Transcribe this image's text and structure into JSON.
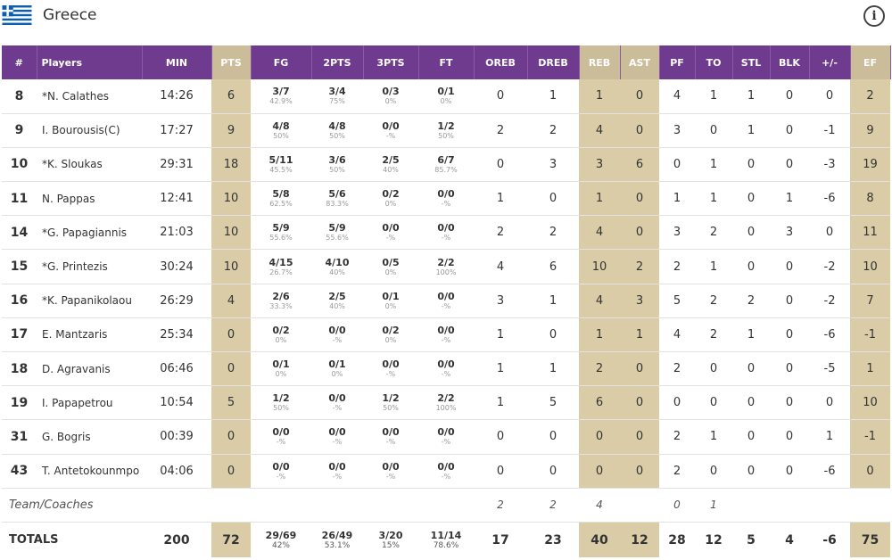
{
  "header": {
    "team": "Greece",
    "info_icon": "info-icon",
    "flag_icon": "greece-flag-icon"
  },
  "columns": [
    "#",
    "Players",
    "MIN",
    "PTS",
    "FG",
    "2PTS",
    "3PTS",
    "FT",
    "OREB",
    "DREB",
    "REB",
    "AST",
    "PF",
    "TO",
    "STL",
    "BLK",
    "+/-",
    "EF"
  ],
  "colors": {
    "header_bg": "#6f3b8e",
    "highlight_header": "#cbbd9a",
    "highlight_cell": "#d9cca7"
  },
  "players": [
    {
      "num": "8",
      "name": "*N. Calathes",
      "min": "14:26",
      "pts": "6",
      "fg": {
        "m": "3/7",
        "p": "42.9%"
      },
      "two": {
        "m": "3/4",
        "p": "75%"
      },
      "three": {
        "m": "0/3",
        "p": "0%"
      },
      "ft": {
        "m": "0/1",
        "p": "0%"
      },
      "oreb": "0",
      "dreb": "1",
      "reb": "1",
      "ast": "0",
      "pf": "4",
      "to": "1",
      "stl": "1",
      "blk": "0",
      "pm": "0",
      "ef": "2"
    },
    {
      "num": "9",
      "name": "I. Bourousis(C)",
      "min": "17:27",
      "pts": "9",
      "fg": {
        "m": "4/8",
        "p": "50%"
      },
      "two": {
        "m": "4/8",
        "p": "50%"
      },
      "three": {
        "m": "0/0",
        "p": "-%"
      },
      "ft": {
        "m": "1/2",
        "p": "50%"
      },
      "oreb": "2",
      "dreb": "2",
      "reb": "4",
      "ast": "0",
      "pf": "3",
      "to": "0",
      "stl": "1",
      "blk": "0",
      "pm": "-1",
      "ef": "9"
    },
    {
      "num": "10",
      "name": "*K. Sloukas",
      "min": "29:31",
      "pts": "18",
      "fg": {
        "m": "5/11",
        "p": "45.5%"
      },
      "two": {
        "m": "3/6",
        "p": "50%"
      },
      "three": {
        "m": "2/5",
        "p": "40%"
      },
      "ft": {
        "m": "6/7",
        "p": "85.7%"
      },
      "oreb": "0",
      "dreb": "3",
      "reb": "3",
      "ast": "6",
      "pf": "0",
      "to": "1",
      "stl": "0",
      "blk": "0",
      "pm": "-3",
      "ef": "19"
    },
    {
      "num": "11",
      "name": "N. Pappas",
      "min": "12:41",
      "pts": "10",
      "fg": {
        "m": "5/8",
        "p": "62.5%"
      },
      "two": {
        "m": "5/6",
        "p": "83.3%"
      },
      "three": {
        "m": "0/2",
        "p": "0%"
      },
      "ft": {
        "m": "0/0",
        "p": "-%"
      },
      "oreb": "1",
      "dreb": "0",
      "reb": "1",
      "ast": "0",
      "pf": "1",
      "to": "1",
      "stl": "0",
      "blk": "1",
      "pm": "-6",
      "ef": "8"
    },
    {
      "num": "14",
      "name": "*G. Papagiannis",
      "min": "21:03",
      "pts": "10",
      "fg": {
        "m": "5/9",
        "p": "55.6%"
      },
      "two": {
        "m": "5/9",
        "p": "55.6%"
      },
      "three": {
        "m": "0/0",
        "p": "-%"
      },
      "ft": {
        "m": "0/0",
        "p": "-%"
      },
      "oreb": "2",
      "dreb": "2",
      "reb": "4",
      "ast": "0",
      "pf": "3",
      "to": "2",
      "stl": "0",
      "blk": "3",
      "pm": "0",
      "ef": "11"
    },
    {
      "num": "15",
      "name": "*G. Printezis",
      "min": "30:24",
      "pts": "10",
      "fg": {
        "m": "4/15",
        "p": "26.7%"
      },
      "two": {
        "m": "4/10",
        "p": "40%"
      },
      "three": {
        "m": "0/5",
        "p": "0%"
      },
      "ft": {
        "m": "2/2",
        "p": "100%"
      },
      "oreb": "4",
      "dreb": "6",
      "reb": "10",
      "ast": "2",
      "pf": "2",
      "to": "1",
      "stl": "0",
      "blk": "0",
      "pm": "-2",
      "ef": "10"
    },
    {
      "num": "16",
      "name": "*K. Papanikolaou",
      "min": "26:29",
      "pts": "4",
      "fg": {
        "m": "2/6",
        "p": "33.3%"
      },
      "two": {
        "m": "2/5",
        "p": "40%"
      },
      "three": {
        "m": "0/1",
        "p": "0%"
      },
      "ft": {
        "m": "0/0",
        "p": "-%"
      },
      "oreb": "3",
      "dreb": "1",
      "reb": "4",
      "ast": "3",
      "pf": "5",
      "to": "2",
      "stl": "2",
      "blk": "0",
      "pm": "-2",
      "ef": "7"
    },
    {
      "num": "17",
      "name": "E. Mantzaris",
      "min": "25:34",
      "pts": "0",
      "fg": {
        "m": "0/2",
        "p": "0%"
      },
      "two": {
        "m": "0/0",
        "p": "-%"
      },
      "three": {
        "m": "0/2",
        "p": "0%"
      },
      "ft": {
        "m": "0/0",
        "p": "-%"
      },
      "oreb": "1",
      "dreb": "0",
      "reb": "1",
      "ast": "1",
      "pf": "4",
      "to": "2",
      "stl": "1",
      "blk": "0",
      "pm": "-6",
      "ef": "-1"
    },
    {
      "num": "18",
      "name": "D. Agravanis",
      "min": "06:46",
      "pts": "0",
      "fg": {
        "m": "0/1",
        "p": "0%"
      },
      "two": {
        "m": "0/1",
        "p": "0%"
      },
      "three": {
        "m": "0/0",
        "p": "-%"
      },
      "ft": {
        "m": "0/0",
        "p": "-%"
      },
      "oreb": "1",
      "dreb": "1",
      "reb": "2",
      "ast": "0",
      "pf": "2",
      "to": "0",
      "stl": "0",
      "blk": "0",
      "pm": "-5",
      "ef": "1"
    },
    {
      "num": "19",
      "name": "I. Papapetrou",
      "min": "10:54",
      "pts": "5",
      "fg": {
        "m": "1/2",
        "p": "50%"
      },
      "two": {
        "m": "0/0",
        "p": "-%"
      },
      "three": {
        "m": "1/2",
        "p": "50%"
      },
      "ft": {
        "m": "2/2",
        "p": "100%"
      },
      "oreb": "1",
      "dreb": "5",
      "reb": "6",
      "ast": "0",
      "pf": "0",
      "to": "0",
      "stl": "0",
      "blk": "0",
      "pm": "0",
      "ef": "10"
    },
    {
      "num": "31",
      "name": "G. Bogris",
      "min": "00:39",
      "pts": "0",
      "fg": {
        "m": "0/0",
        "p": "-%"
      },
      "two": {
        "m": "0/0",
        "p": "-%"
      },
      "three": {
        "m": "0/0",
        "p": "-%"
      },
      "ft": {
        "m": "0/0",
        "p": "-%"
      },
      "oreb": "0",
      "dreb": "0",
      "reb": "0",
      "ast": "0",
      "pf": "2",
      "to": "1",
      "stl": "0",
      "blk": "0",
      "pm": "1",
      "ef": "-1"
    },
    {
      "num": "43",
      "name": "T. Antetokounmpo",
      "min": "04:06",
      "pts": "0",
      "fg": {
        "m": "0/0",
        "p": "-%"
      },
      "two": {
        "m": "0/0",
        "p": "-%"
      },
      "three": {
        "m": "0/0",
        "p": "-%"
      },
      "ft": {
        "m": "0/0",
        "p": "-%"
      },
      "oreb": "0",
      "dreb": "0",
      "reb": "0",
      "ast": "0",
      "pf": "2",
      "to": "0",
      "stl": "0",
      "blk": "0",
      "pm": "-6",
      "ef": "0"
    }
  ],
  "team_coaches": {
    "label": "Team/Coaches",
    "oreb": "2",
    "dreb": "2",
    "reb": "4",
    "pf": "0",
    "to": "1"
  },
  "totals": {
    "label": "TOTALS",
    "min": "200",
    "pts": "72",
    "fg": {
      "m": "29/69",
      "p": "42%"
    },
    "two": {
      "m": "26/49",
      "p": "53.1%"
    },
    "three": {
      "m": "3/20",
      "p": "15%"
    },
    "ft": {
      "m": "11/14",
      "p": "78.6%"
    },
    "oreb": "17",
    "dreb": "23",
    "reb": "40",
    "ast": "12",
    "pf": "28",
    "to": "12",
    "stl": "5",
    "blk": "4",
    "pm": "-6",
    "ef": "75"
  }
}
